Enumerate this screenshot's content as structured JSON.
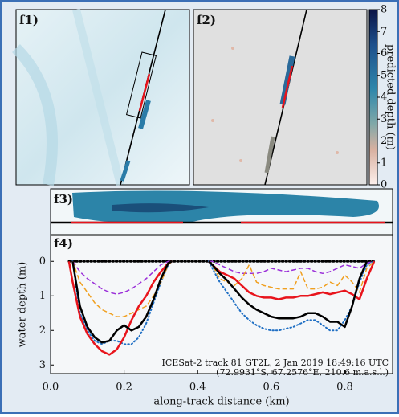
{
  "panels": [
    "f1)",
    "f2)",
    "f3)",
    "f4)"
  ],
  "chart_data": [
    {
      "type": "colorbar",
      "label": "predicted depth (m)",
      "ylim": [
        0,
        8
      ],
      "yticks": [
        0,
        1,
        2,
        3,
        4,
        5,
        6,
        7,
        8
      ]
    },
    {
      "type": "line",
      "xlabel": "along-track distance (km)",
      "ylabel": "water depth (m)",
      "annotations": [
        "ICESat-2 track 81 GT2L, 2 Jan 2019 18:49:16 UTC",
        "(72.9931°S, 67.2576°E, 210.6 m.a.s.l.)"
      ],
      "xlim": [
        0,
        0.93
      ],
      "xticks": [
        {
          "value": 0,
          "label": "0.0"
        },
        0.2,
        0.4,
        0.6,
        0.8
      ],
      "ylim": [
        -0.75,
        3.25
      ],
      "inverted": true,
      "yticks": [
        0,
        1,
        2,
        3
      ],
      "x": [
        0.05,
        0.06,
        0.08,
        0.1,
        0.12,
        0.14,
        0.16,
        0.18,
        0.2,
        0.22,
        0.24,
        0.26,
        0.28,
        0.3,
        0.32,
        0.33,
        0.37,
        0.43,
        0.44,
        0.46,
        0.48,
        0.5,
        0.52,
        0.54,
        0.56,
        0.58,
        0.6,
        0.62,
        0.64,
        0.66,
        0.68,
        0.7,
        0.72,
        0.74,
        0.76,
        0.78,
        0.8,
        0.82,
        0.84,
        0.86,
        0.88
      ],
      "series": [
        {
          "color": "#000000",
          "style": "dotted",
          "width": 3,
          "values": [
            0,
            0,
            0,
            0,
            0,
            0,
            0,
            0,
            0,
            0,
            0,
            0,
            0,
            0,
            0,
            0,
            0,
            0,
            0,
            0,
            0,
            0,
            0,
            0,
            0,
            0,
            0,
            0,
            0,
            0,
            0,
            0,
            0,
            0,
            0,
            0,
            0,
            0,
            0,
            0,
            0
          ]
        },
        {
          "color": "#1f6fc4",
          "style": "dotted",
          "width": 2,
          "values": [
            null,
            0,
            1.5,
            2.0,
            2.3,
            2.4,
            2.3,
            2.3,
            2.4,
            2.4,
            2.2,
            1.8,
            1.2,
            0.6,
            0.1,
            0,
            null,
            0,
            0.2,
            0.6,
            0.9,
            1.2,
            1.5,
            1.7,
            1.85,
            1.95,
            2.0,
            2.0,
            1.95,
            1.9,
            1.8,
            1.7,
            1.7,
            1.85,
            2.0,
            2.0,
            1.7,
            1.3,
            0.6,
            0.1,
            0
          ]
        },
        {
          "color": "#9b30d9",
          "style": "dashed",
          "width": 1.5,
          "values": [
            null,
            0,
            0.3,
            0.5,
            0.65,
            0.8,
            0.9,
            0.95,
            0.9,
            0.8,
            0.65,
            0.5,
            0.3,
            0.1,
            0,
            0,
            null,
            0,
            0,
            0.1,
            0.2,
            0.3,
            0.35,
            0.35,
            0.35,
            0.3,
            0.2,
            0.25,
            0.3,
            0.25,
            0.2,
            0.2,
            0.3,
            0.35,
            0.3,
            0.2,
            0.1,
            0.15,
            0.2,
            0.05,
            0
          ]
        },
        {
          "color": "#f0a020",
          "style": "dashed",
          "width": 1.5,
          "values": [
            null,
            0,
            0.6,
            0.9,
            1.2,
            1.4,
            1.5,
            1.6,
            1.6,
            1.5,
            1.4,
            1.3,
            1.0,
            0.6,
            0.1,
            0,
            null,
            0,
            0.1,
            0.5,
            0.6,
            0.7,
            0.5,
            0.1,
            0.6,
            0.7,
            0.75,
            0.8,
            0.8,
            0.8,
            0.3,
            0.8,
            0.8,
            0.75,
            0.6,
            0.7,
            0.4,
            0.6,
            0.9,
            0.2,
            0
          ]
        },
        {
          "color": "#e8141c",
          "style": "solid",
          "width": 2.5,
          "values": [
            0,
            0.6,
            1.6,
            2.1,
            2.4,
            2.6,
            2.7,
            2.55,
            2.2,
            1.7,
            1.3,
            1.0,
            0.6,
            0.3,
            0.05,
            0,
            null,
            0,
            0.1,
            0.3,
            0.4,
            0.5,
            0.7,
            0.9,
            1.0,
            1.05,
            1.05,
            1.1,
            1.05,
            1.05,
            1.0,
            1.0,
            0.95,
            0.9,
            0.95,
            0.9,
            0.85,
            0.95,
            1.1,
            0.5,
            0
          ]
        },
        {
          "color": "#000000",
          "style": "solid",
          "width": 2.5,
          "values": [
            null,
            0,
            1.3,
            1.9,
            2.2,
            2.35,
            2.3,
            2.0,
            1.85,
            2.0,
            1.9,
            1.6,
            1.1,
            0.5,
            0.05,
            0,
            null,
            0,
            0.1,
            0.35,
            0.55,
            0.8,
            1.05,
            1.25,
            1.4,
            1.5,
            1.6,
            1.65,
            1.65,
            1.65,
            1.6,
            1.5,
            1.5,
            1.6,
            1.75,
            1.75,
            1.9,
            1.3,
            0.5,
            0,
            null
          ]
        }
      ]
    }
  ]
}
